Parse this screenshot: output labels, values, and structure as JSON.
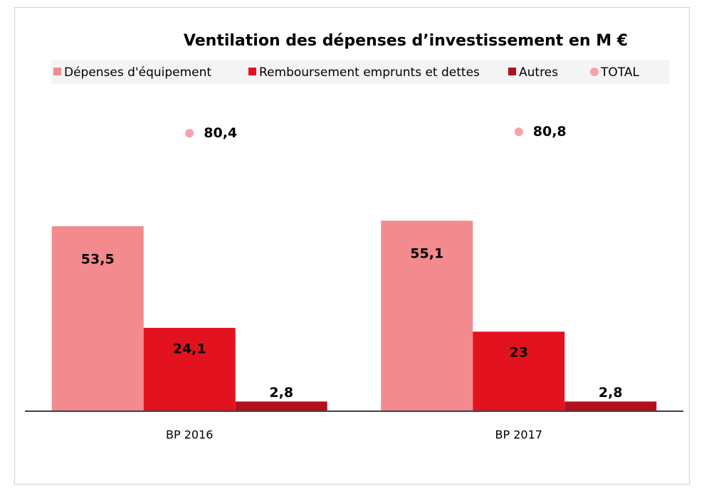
{
  "chart_data": {
    "type": "bar",
    "title": "Ventilation des dépenses d’investissement en M €",
    "categories": [
      "BP 2016",
      "BP 2017"
    ],
    "series": [
      {
        "name": "Dépenses d'équipement",
        "color": "#f28a8e",
        "values": [
          53.5,
          55.1
        ],
        "value_labels": [
          "53,5",
          "55,1"
        ]
      },
      {
        "name": "Remboursement emprunts et dettes",
        "color": "#e3121f",
        "values": [
          24.1,
          23
        ],
        "value_labels": [
          "24,1",
          "23"
        ]
      },
      {
        "name": "Autres",
        "color": "#b3101d",
        "values": [
          2.8,
          2.8
        ],
        "value_labels": [
          "2,8",
          "2,8"
        ]
      },
      {
        "name": "TOTAL",
        "type": "scatter",
        "color": "#f5a3aa",
        "values": [
          80.4,
          80.8
        ],
        "value_labels": [
          "80,4",
          "80,8"
        ]
      }
    ]
  }
}
